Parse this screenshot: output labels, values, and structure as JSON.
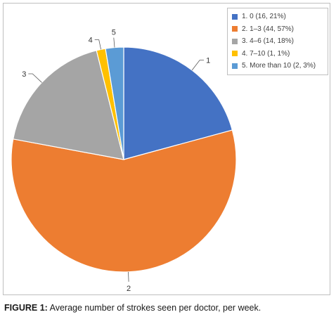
{
  "chart_data": {
    "type": "pie",
    "title": "",
    "slices": [
      {
        "label": "1",
        "legend": "1. 0 (16, 21%)",
        "value": 16,
        "percent": 21,
        "color": "#4472C4"
      },
      {
        "label": "2",
        "legend": "2. 1–3 (44, 57%)",
        "value": 44,
        "percent": 57,
        "color": "#ED7D31"
      },
      {
        "label": "3",
        "legend": "3. 4–6 (14, 18%)",
        "value": 14,
        "percent": 18,
        "color": "#A5A5A5"
      },
      {
        "label": "4",
        "legend": "4. 7–10 (1, 1%)",
        "value": 1,
        "percent": 1,
        "color": "#FFC000"
      },
      {
        "label": "5",
        "legend": "5. More than 10 (2, 3%)",
        "value": 2,
        "percent": 3,
        "color": "#5B9BD5"
      }
    ],
    "legend_position": "top-right"
  },
  "caption": {
    "prefix": "FIGURE 1:",
    "text": " Average number of strokes seen per doctor, per week."
  }
}
